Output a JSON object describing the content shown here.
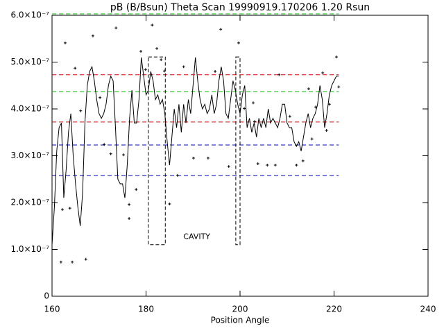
{
  "chart_data": {
    "type": "line",
    "title": "pB (B/Bsun) Theta Scan 19990919.170206  1.20 Rsun",
    "xlabel": "Position Angle",
    "xlim": [
      160,
      240
    ],
    "ylim": [
      0,
      6e-07
    ],
    "xticks": [
      160,
      180,
      200,
      220,
      240
    ],
    "yticks": [
      0,
      {
        "value": 1e-07,
        "label": "1.0×10⁻⁷"
      },
      {
        "value": 2e-07,
        "label": "2.0×10⁻⁷"
      },
      {
        "value": 3e-07,
        "label": "3.0×10⁻⁷"
      },
      {
        "value": 4e-07,
        "label": "4.0×10⁻⁷"
      },
      {
        "value": 5e-07,
        "label": "5.0×10⁻⁷"
      },
      {
        "value": 6e-07,
        "label": "6.0×10⁻⁷"
      }
    ],
    "series": [
      {
        "style": "line",
        "color": "#000000",
        "x": [
          160,
          160.5,
          161,
          161.5,
          162,
          162.5,
          163,
          163.5,
          164,
          164.5,
          165,
          165.5,
          166,
          166.5,
          167,
          167.5,
          168,
          168.5,
          169,
          169.5,
          170,
          170.5,
          171,
          171.5,
          172,
          172.5,
          173,
          173.5,
          174,
          174.5,
          175,
          175.5,
          176,
          176.5,
          177,
          177.5,
          178,
          178.5,
          179,
          179.5,
          180,
          180.5,
          181,
          181.5,
          182,
          182.5,
          183,
          183.5,
          184,
          184.5,
          185,
          185.5,
          186,
          186.5,
          187,
          187.5,
          188,
          188.5,
          189,
          189.5,
          190,
          190.5,
          191,
          191.5,
          192,
          192.5,
          193,
          193.5,
          194,
          194.5,
          195,
          195.5,
          196,
          196.5,
          197,
          197.5,
          198,
          198.5,
          199,
          199.5,
          200,
          200.5,
          201,
          201.5,
          202,
          202.5,
          203,
          203.5,
          204,
          204.5,
          205,
          205.5,
          206,
          206.5,
          207,
          207.5,
          208,
          208.5,
          209,
          209.5,
          210,
          210.5,
          211,
          211.5,
          212,
          212.5,
          213,
          213.5,
          214,
          214.5,
          215,
          215.5,
          216,
          216.5,
          217,
          217.5,
          218,
          218.5,
          219,
          219.5,
          220,
          220.5,
          221
        ],
        "values": [
          1.1e-07,
          1.9e-07,
          3.1e-07,
          3.6e-07,
          3.7e-07,
          2.1e-07,
          2.7e-07,
          3.5e-07,
          3.9e-07,
          3e-07,
          2.4e-07,
          1.9e-07,
          1.5e-07,
          2.2e-07,
          3.7e-07,
          4.5e-07,
          4.8e-07,
          4.9e-07,
          4.6e-07,
          4.2e-07,
          3.9e-07,
          3.8e-07,
          3.9e-07,
          4.1e-07,
          4.5e-07,
          4.7e-07,
          4.6e-07,
          3.6e-07,
          2.5e-07,
          2.4e-07,
          2.4e-07,
          2.1e-07,
          2.8e-07,
          3.8e-07,
          4.4e-07,
          3.7e-07,
          3.7e-07,
          4.2e-07,
          5.1e-07,
          4.7e-07,
          4.3e-07,
          4.4e-07,
          4.8e-07,
          4.6e-07,
          4.2e-07,
          4.3e-07,
          4.1e-07,
          4.2e-07,
          3.9e-07,
          3.3e-07,
          2.8e-07,
          3.4e-07,
          4e-07,
          3.6e-07,
          4.1e-07,
          3.5e-07,
          4.1e-07,
          3.7e-07,
          4.2e-07,
          3.9e-07,
          4.5e-07,
          5.1e-07,
          4.6e-07,
          4.2e-07,
          4e-07,
          4.1e-07,
          3.9e-07,
          4e-07,
          4.3e-07,
          3.9e-07,
          4.1e-07,
          4.6e-07,
          4.9e-07,
          4.6e-07,
          3.9e-07,
          3.8e-07,
          4.2e-07,
          4.6e-07,
          4.4e-07,
          4.1e-07,
          3.9e-07,
          4.3e-07,
          4.5e-07,
          3.6e-07,
          3.8e-07,
          3.5e-07,
          3.7e-07,
          3.4e-07,
          3.8e-07,
          3.6e-07,
          3.8e-07,
          3.6e-07,
          4e-07,
          3.7e-07,
          3.8e-07,
          3.7e-07,
          3.6e-07,
          3.8e-07,
          4.1e-07,
          4.1e-07,
          3.7e-07,
          3.6e-07,
          3.6e-07,
          3.3e-07,
          3.2e-07,
          3.3e-07,
          3.1e-07,
          3.4e-07,
          3.7e-07,
          3.9e-07,
          3.6e-07,
          3.8e-07,
          3.9e-07,
          4.1e-07,
          4.5e-07,
          4.2e-07,
          3.6e-07,
          3.9e-07,
          4.3e-07,
          4.5e-07,
          4.6e-07,
          4.7e-07,
          4.7e-07
        ]
      },
      {
        "style": "points",
        "color": "#000000",
        "x": [
          162.8,
          162.2,
          161.9,
          164.3,
          167.2,
          164.9,
          166.1,
          168.7,
          173.6,
          172.5,
          171.1,
          176.4,
          176.4,
          177.9,
          178.9,
          181.3,
          183.2,
          183.9,
          185.0,
          186.7,
          188.0,
          195.9,
          199.7,
          190.1,
          193.2,
          194.7,
          197.6,
          203.8,
          205.8,
          207.5,
          212.0,
          213.4,
          208.3,
          214.6,
          216.1,
          217.6,
          220.5,
          221.0,
          219.0,
          218.4,
          215.3,
          210.6,
          202.8,
          203.1,
          200.9,
          182.3,
          179.9,
          170.2,
          175.2,
          163.8
        ],
        "values": [
          5.41e-07,
          1.85e-07,
          7.3e-08,
          7.3e-08,
          7.9e-08,
          4.87e-07,
          3.96e-07,
          5.56e-07,
          5.73e-07,
          3.04e-07,
          3.24e-07,
          1.66e-07,
          1.96e-07,
          2.28e-07,
          5.23e-07,
          5.79e-07,
          5.05e-07,
          4.81e-07,
          1.97e-07,
          2.58e-07,
          4.9e-07,
          5.7e-07,
          5.41e-07,
          2.95e-07,
          2.95e-07,
          4.8e-07,
          2.77e-07,
          2.83e-07,
          2.8e-07,
          2.8e-07,
          2.8e-07,
          2.89e-07,
          4.73e-07,
          4.43e-07,
          4.04e-07,
          4.77e-07,
          5.11e-07,
          4.47e-07,
          4.1e-07,
          3.54e-07,
          3.36e-07,
          3.84e-07,
          4.13e-07,
          3.73e-07,
          4.01e-07,
          5.29e-07,
          4.84e-07,
          4.24e-07,
          3.02e-07,
          1.88e-07
        ]
      }
    ],
    "reference_lines": [
      {
        "value": 6.03e-07,
        "color": "#00c000"
      },
      {
        "value": 4.73e-07,
        "color": "#e00000"
      },
      {
        "value": 4.37e-07,
        "color": "#00c000"
      },
      {
        "value": 3.72e-07,
        "color": "#e00000"
      },
      {
        "value": 3.23e-07,
        "color": "#0000c0"
      },
      {
        "value": 2.58e-07,
        "color": "#0000c0"
      }
    ],
    "reference_xlim": [
      160,
      221
    ],
    "boxes": [
      {
        "xlim": [
          180.5,
          184.1
        ],
        "ylim": [
          1.1e-07,
          5.11e-07
        ]
      },
      {
        "xlim": [
          199.1,
          200.0
        ],
        "ylim": [
          1.1e-07,
          5.11e-07
        ]
      }
    ],
    "annotation": {
      "text": "CAVITY",
      "x": 190.8,
      "y": 1.27e-07,
      "color": "#e00000"
    }
  }
}
